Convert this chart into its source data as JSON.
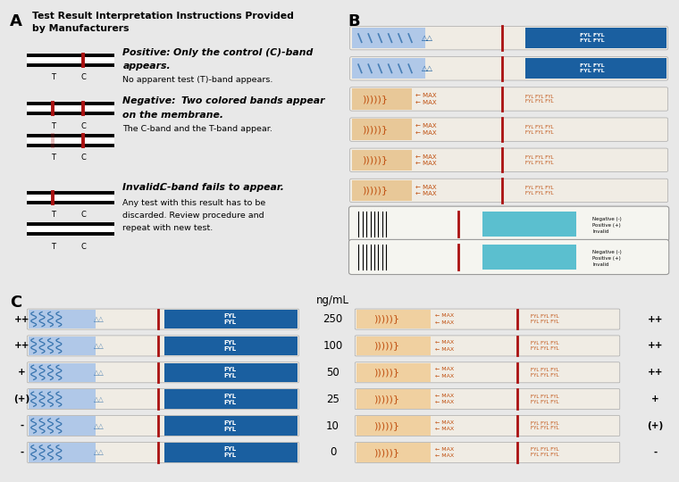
{
  "panel_A_label": "A",
  "panel_B_label": "B",
  "panel_C_label": "C",
  "title_line1": "Test Result Interpretation Instructions Provided",
  "title_line2": "by Manufacturers",
  "positive_text1": "Positive: ",
  "positive_text2": "Only the control (C)-band",
  "positive_text3": "appears.",
  "positive_text4": "No apparent test (T)-band appears.",
  "negative_text1": "Negative: ",
  "negative_text2": "Two colored bands appear",
  "negative_text3": "on the membrane.",
  "negative_text4": "The C-band and the T-band appear.",
  "invalid_text1": "Invalid: ",
  "invalid_text2": "C-band fails to appear.",
  "invalid_text3": "Any test with this result has to be",
  "invalid_text4": "discarded. Review procedure and",
  "invalid_text5": "repeat with new test.",
  "concentrations": [
    "250",
    "100",
    "50",
    "25",
    "10",
    "0"
  ],
  "left_labels": [
    "++",
    "++",
    "+",
    "(+)",
    "-",
    "-"
  ],
  "right_labels": [
    "++",
    "++",
    "++",
    "+",
    "(+)",
    "-"
  ],
  "ng_ml": "ng/mL",
  "bg_gray": "#e8e8e8",
  "white": "#ffffff",
  "black": "#000000",
  "red_band": "#aa1111",
  "blue_strip": "#1a5fa0",
  "blue_light": "#b0c8e8",
  "orange_strip": "#c05010",
  "orange_light": "#f0d0a0",
  "border": "#909090"
}
